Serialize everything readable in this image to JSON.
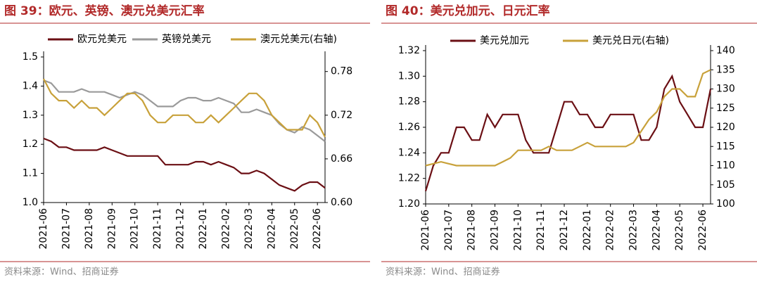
{
  "chart_data": [
    {
      "type": "line",
      "title": "图 39：欧元、英镑、澳元兑美元汇率",
      "source": "资料来源：Wind、招商证券",
      "categories": [
        "2021-06",
        null,
        null,
        "2021-07",
        null,
        null,
        "2021-08",
        null,
        null,
        "2021-09",
        null,
        null,
        "2021-10",
        null,
        null,
        "2021-11",
        null,
        null,
        "2021-12",
        null,
        null,
        "2022-01",
        null,
        null,
        "2022-02",
        null,
        null,
        "2022-03",
        null,
        null,
        "2022-04",
        null,
        null,
        "2022-05",
        null,
        null,
        "2022-06",
        null
      ],
      "ylim": [
        1.0,
        1.5
      ],
      "yticks": [
        {
          "value": 1.0,
          "label": "1.0"
        },
        1.1,
        1.2,
        1.3,
        1.4,
        1.5
      ],
      "y2lim": [
        0.6,
        0.8
      ],
      "y2ticks": [
        {
          "value": 0.6,
          "label": "0.60"
        },
        0.66,
        0.72,
        0.78
      ],
      "series": [
        {
          "name": "欧元兑美元",
          "color": "#6b0f14",
          "values": [
            1.22,
            1.21,
            1.19,
            1.19,
            1.18,
            1.18,
            1.18,
            1.18,
            1.19,
            1.18,
            1.17,
            1.16,
            1.16,
            1.16,
            1.16,
            1.16,
            1.13,
            1.13,
            1.13,
            1.13,
            1.14,
            1.14,
            1.13,
            1.14,
            1.13,
            1.12,
            1.1,
            1.1,
            1.11,
            1.1,
            1.08,
            1.06,
            1.05,
            1.04,
            1.06,
            1.07,
            1.07,
            1.05
          ]
        },
        {
          "name": "英镑兑美元",
          "color": "#9a9a9a",
          "values": [
            1.42,
            1.41,
            1.38,
            1.38,
            1.38,
            1.39,
            1.38,
            1.38,
            1.38,
            1.37,
            1.36,
            1.37,
            1.38,
            1.37,
            1.35,
            1.33,
            1.33,
            1.33,
            1.35,
            1.36,
            1.36,
            1.35,
            1.35,
            1.36,
            1.35,
            1.34,
            1.31,
            1.31,
            1.32,
            1.31,
            1.3,
            1.27,
            1.25,
            1.24,
            1.26,
            1.25,
            1.23,
            1.21
          ]
        },
        {
          "name": "澳元兑美元(右轴)",
          "color": "#c8a13a",
          "axis": "y2",
          "values": [
            0.77,
            0.75,
            0.74,
            0.74,
            0.73,
            0.74,
            0.73,
            0.73,
            0.72,
            0.73,
            0.74,
            0.75,
            0.75,
            0.74,
            0.72,
            0.71,
            0.71,
            0.72,
            0.72,
            0.72,
            0.71,
            0.71,
            0.72,
            0.71,
            0.72,
            0.73,
            0.74,
            0.75,
            0.75,
            0.74,
            0.72,
            0.71,
            0.7,
            0.7,
            0.7,
            0.72,
            0.71,
            0.69
          ]
        }
      ]
    },
    {
      "type": "line",
      "title": "图 40：美元兑加元、日元汇率",
      "source": "资料来源：Wind、招商证券",
      "categories": [
        "2021-06",
        null,
        null,
        "2021-07",
        null,
        null,
        "2021-08",
        null,
        null,
        "2021-09",
        null,
        null,
        "2021-10",
        null,
        null,
        "2021-11",
        null,
        null,
        "2021-12",
        null,
        null,
        "2022-01",
        null,
        null,
        "2022-02",
        null,
        null,
        "2022-03",
        null,
        null,
        "2022-04",
        null,
        null,
        "2022-05",
        null,
        null,
        "2022-06",
        null
      ],
      "ylim": [
        1.2,
        1.32
      ],
      "yticks": [
        {
          "value": 1.2,
          "label": "1.20"
        },
        1.22,
        1.24,
        1.26,
        1.28,
        {
          "value": 1.3,
          "label": "1.30"
        },
        1.32
      ],
      "y2lim": [
        100,
        140
      ],
      "y2ticks": [
        100,
        105,
        110,
        115,
        120,
        125,
        130,
        135,
        140
      ],
      "series": [
        {
          "name": "美元兑加元",
          "color": "#6b0f14",
          "values": [
            1.21,
            1.23,
            1.24,
            1.24,
            1.26,
            1.26,
            1.25,
            1.25,
            1.27,
            1.26,
            1.27,
            1.27,
            1.27,
            1.25,
            1.24,
            1.24,
            1.24,
            1.26,
            1.28,
            1.28,
            1.27,
            1.27,
            1.26,
            1.26,
            1.27,
            1.27,
            1.27,
            1.27,
            1.25,
            1.25,
            1.26,
            1.29,
            1.3,
            1.28,
            1.27,
            1.26,
            1.26,
            1.29
          ]
        },
        {
          "name": "美元兑日元(右轴)",
          "color": "#c8a13a",
          "axis": "y2",
          "values": [
            110,
            110.5,
            111,
            110.5,
            110,
            110,
            110,
            110,
            110,
            110,
            111,
            112,
            114,
            114,
            114,
            114,
            115,
            114,
            114,
            114,
            115,
            116,
            115,
            115,
            115,
            115,
            115,
            116,
            119,
            122,
            124,
            128,
            130,
            130,
            128,
            128,
            134,
            135
          ]
        }
      ]
    }
  ]
}
